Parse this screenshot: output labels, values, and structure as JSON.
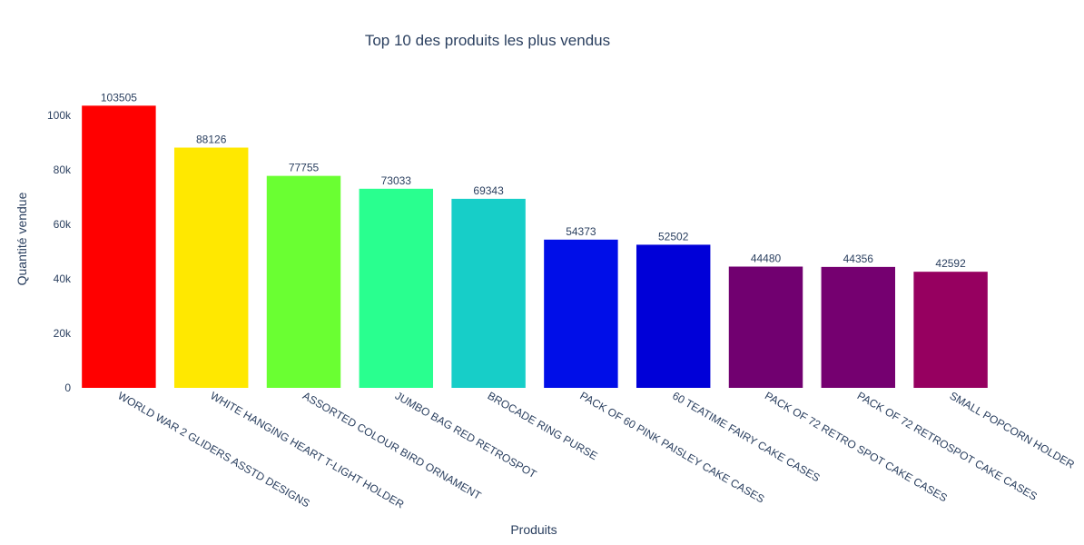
{
  "chart_data": {
    "type": "bar",
    "title": "Top 10 des produits les plus vendus",
    "xlabel": "Produits",
    "ylabel": "Quantité vendue",
    "ylim": [
      0,
      108950
    ],
    "yticks": [
      {
        "value": 0,
        "label": "0"
      },
      {
        "value": 20000,
        "label": "20k"
      },
      {
        "value": 40000,
        "label": "40k"
      },
      {
        "value": 60000,
        "label": "60k"
      },
      {
        "value": 80000,
        "label": "80k"
      },
      {
        "value": 100000,
        "label": "100k"
      }
    ],
    "grid": false,
    "categories": [
      "WORLD WAR 2 GLIDERS ASSTD DESIGNS",
      "WHITE HANGING HEART T-LIGHT HOLDER",
      "ASSORTED COLOUR BIRD ORNAMENT",
      "JUMBO BAG RED RETROSPOT",
      "BROCADE RING PURSE",
      "PACK OF 60 PINK PAISLEY CAKE CASES",
      "60 TEATIME FAIRY CAKE CASES",
      "PACK OF 72 RETRO SPOT CAKE CASES",
      "PACK OF 72 RETROSPOT CAKE CASES",
      "SMALL POPCORN HOLDER"
    ],
    "values": [
      103505,
      88126,
      77755,
      73033,
      69343,
      54373,
      52502,
      44480,
      44356,
      42592
    ],
    "data_labels": [
      "103505",
      "88126",
      "77755",
      "73033",
      "69343",
      "54373",
      "52502",
      "44480",
      "44356",
      "42592"
    ],
    "colors": [
      "#ff0000",
      "#ffe800",
      "#6aff32",
      "#29ff8f",
      "#17cec8",
      "#000ee8",
      "#0000d8",
      "#710070",
      "#750070",
      "#960060"
    ]
  }
}
